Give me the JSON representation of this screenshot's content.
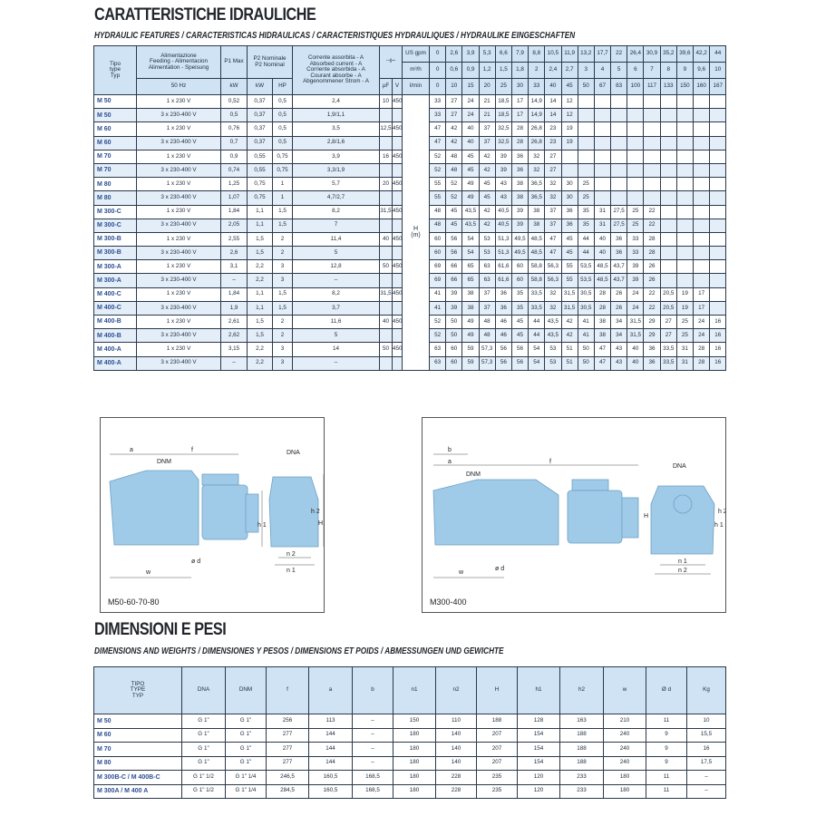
{
  "hydraulic": {
    "title": "CARATTERISTICHE IDRAULICHE",
    "subtitle": "HYDRAULIC FEATURES / CARACTERISTICAS HIDRAULICAS / CARACTERISTIQUES HYDRAULIQUES / HYDRAULIKE EINGESCHAFTEN",
    "headers": {
      "type": "Tipo\ntype\nTyp",
      "feeding": "Alimentazione\nFeeding - Alimentacion\nAlimentation - Speisung",
      "hz": "50 Hz",
      "p1": "P1 Max",
      "p2": "P2 Nominale\nP2 Nominal",
      "kw": "kW",
      "hp": "HP",
      "current": "Corrente assorbita - A\nAbsorbed current - A\nCorriente absorbida - A\nCourant absorbe - A\nAbgenommener Strom - A",
      "capacitor_symbol": "⊣⊢",
      "uf": "µF",
      "v": "V",
      "unit_labels": [
        "US gpm",
        "m³/h",
        "l/min"
      ],
      "head_unit": "H\n(m)"
    },
    "flow_us_gpm": [
      "0",
      "2,6",
      "3,9",
      "5,3",
      "6,6",
      "7,9",
      "8,8",
      "10,5",
      "11,9",
      "13,2",
      "17,7",
      "22",
      "26,4",
      "30,9",
      "35,2",
      "39,6",
      "42,2",
      "44"
    ],
    "flow_m3h": [
      "0",
      "0,6",
      "0,9",
      "1,2",
      "1,5",
      "1,8",
      "2",
      "2,4",
      "2,7",
      "3",
      "4",
      "5",
      "6",
      "7",
      "8",
      "9",
      "9,6",
      "10"
    ],
    "flow_lmin": [
      "0",
      "10",
      "15",
      "20",
      "25",
      "30",
      "33",
      "40",
      "45",
      "50",
      "67",
      "83",
      "100",
      "117",
      "133",
      "150",
      "160",
      "167"
    ],
    "rows": [
      {
        "type": "M 50",
        "feed": "1 x 230 V",
        "p1": "0,52",
        "kw": "0,37",
        "hp": "0,5",
        "amp": "2,4",
        "uf": "10",
        "v": "450",
        "h": [
          "33",
          "27",
          "24",
          "21",
          "18,5",
          "17",
          "14,9",
          "14",
          "12"
        ]
      },
      {
        "type": "M 50",
        "feed": "3 x 230-400 V",
        "p1": "0,5",
        "kw": "0,37",
        "hp": "0,5",
        "amp": "1,9/1,1",
        "uf": "",
        "v": "",
        "h": [
          "33",
          "27",
          "24",
          "21",
          "18,5",
          "17",
          "14,9",
          "14",
          "12"
        ]
      },
      {
        "type": "M 60",
        "feed": "1 x 230 V",
        "p1": "0,76",
        "kw": "0,37",
        "hp": "0,5",
        "amp": "3,5",
        "uf": "12,5",
        "v": "450",
        "h": [
          "47",
          "42",
          "40",
          "37",
          "32,5",
          "28",
          "26,8",
          "23",
          "19"
        ]
      },
      {
        "type": "M 60",
        "feed": "3 x 230-400 V",
        "p1": "0,7",
        "kw": "0,37",
        "hp": "0,5",
        "amp": "2,8/1,6",
        "uf": "",
        "v": "",
        "h": [
          "47",
          "42",
          "40",
          "37",
          "32,5",
          "28",
          "26,8",
          "23",
          "19"
        ]
      },
      {
        "type": "M 70",
        "feed": "1 x 230 V",
        "p1": "0,9",
        "kw": "0,55",
        "hp": "0,75",
        "amp": "3,9",
        "uf": "16",
        "v": "450",
        "h": [
          "52",
          "48",
          "45",
          "42",
          "39",
          "36",
          "32",
          "27"
        ]
      },
      {
        "type": "M 70",
        "feed": "3 x 230-400 V",
        "p1": "0,74",
        "kw": "0,55",
        "hp": "0,75",
        "amp": "3,3/1,9",
        "uf": "",
        "v": "",
        "h": [
          "52",
          "48",
          "45",
          "42",
          "39",
          "36",
          "32",
          "27"
        ]
      },
      {
        "type": "M 80",
        "feed": "1 x 230 V",
        "p1": "1,25",
        "kw": "0,75",
        "hp": "1",
        "amp": "5,7",
        "uf": "20",
        "v": "450",
        "h": [
          "55",
          "52",
          "49",
          "45",
          "43",
          "38",
          "36,5",
          "32",
          "30",
          "25"
        ]
      },
      {
        "type": "M 80",
        "feed": "3 x 230-400 V",
        "p1": "1,07",
        "kw": "0,75",
        "hp": "1",
        "amp": "4,7/2,7",
        "uf": "",
        "v": "",
        "h": [
          "55",
          "52",
          "49",
          "45",
          "43",
          "38",
          "36,5",
          "32",
          "30",
          "25"
        ]
      },
      {
        "type": "M 300-C",
        "feed": "1 x 230 V",
        "p1": "1,84",
        "kw": "1,1",
        "hp": "1,5",
        "amp": "8,2",
        "uf": "31,5",
        "v": "450",
        "h": [
          "48",
          "45",
          "43,5",
          "42",
          "40,5",
          "39",
          "38",
          "37",
          "36",
          "35",
          "31",
          "27,5",
          "25",
          "22"
        ]
      },
      {
        "type": "M 300-C",
        "feed": "3 x 230-400 V",
        "p1": "2,05",
        "kw": "1,1",
        "hp": "1,5",
        "amp": "7",
        "uf": "",
        "v": "",
        "h": [
          "48",
          "45",
          "43,5",
          "42",
          "40,5",
          "39",
          "38",
          "37",
          "36",
          "35",
          "31",
          "27,5",
          "25",
          "22"
        ]
      },
      {
        "type": "M 300-B",
        "feed": "1 x 230 V",
        "p1": "2,55",
        "kw": "1,5",
        "hp": "2",
        "amp": "11,4",
        "uf": "40",
        "v": "450",
        "h": [
          "60",
          "56",
          "54",
          "53",
          "51,3",
          "49,5",
          "48,5",
          "47",
          "45",
          "44",
          "40",
          "36",
          "33",
          "28"
        ]
      },
      {
        "type": "M 300-B",
        "feed": "3 x 230-400 V",
        "p1": "2,6",
        "kw": "1,5",
        "hp": "2",
        "amp": "5",
        "uf": "",
        "v": "",
        "h": [
          "60",
          "56",
          "54",
          "53",
          "51,3",
          "49,5",
          "48,5",
          "47",
          "45",
          "44",
          "40",
          "36",
          "33",
          "28"
        ]
      },
      {
        "type": "M 300-A",
        "feed": "1 x 230 V",
        "p1": "3,1",
        "kw": "2,2",
        "hp": "3",
        "amp": "12,8",
        "uf": "50",
        "v": "450",
        "h": [
          "69",
          "66",
          "65",
          "63",
          "61,6",
          "60",
          "58,8",
          "56,3",
          "55",
          "53,5",
          "48,5",
          "43,7",
          "39",
          "26"
        ]
      },
      {
        "type": "M 300-A",
        "feed": "3 x 230-400 V",
        "p1": "–",
        "kw": "2,2",
        "hp": "3",
        "amp": "–",
        "uf": "",
        "v": "",
        "h": [
          "69",
          "66",
          "65",
          "63",
          "61,6",
          "60",
          "58,8",
          "56,3",
          "55",
          "53,5",
          "48,5",
          "43,7",
          "39",
          "26"
        ]
      },
      {
        "type": "M 400-C",
        "feed": "1 x 230 V",
        "p1": "1,84",
        "kw": "1,1",
        "hp": "1,5",
        "amp": "8,2",
        "uf": "31,5",
        "v": "450",
        "h": [
          "41",
          "39",
          "38",
          "37",
          "36",
          "35",
          "33,5",
          "32",
          "31,5",
          "30,5",
          "28",
          "26",
          "24",
          "22",
          "20,5",
          "19",
          "17"
        ]
      },
      {
        "type": "M 400-C",
        "feed": "3 x 230-400 V",
        "p1": "1,9",
        "kw": "1,1",
        "hp": "1,5",
        "amp": "3,7",
        "uf": "",
        "v": "",
        "h": [
          "41",
          "39",
          "38",
          "37",
          "36",
          "35",
          "33,5",
          "32",
          "31,5",
          "30,5",
          "28",
          "26",
          "24",
          "22",
          "20,5",
          "19",
          "17"
        ]
      },
      {
        "type": "M 400-B",
        "feed": "1 x 230 V",
        "p1": "2,61",
        "kw": "1,5",
        "hp": "2",
        "amp": "11,6",
        "uf": "40",
        "v": "450",
        "h": [
          "52",
          "50",
          "49",
          "48",
          "46",
          "45",
          "44",
          "43,5",
          "42",
          "41",
          "38",
          "34",
          "31,5",
          "29",
          "27",
          "25",
          "24",
          "16"
        ]
      },
      {
        "type": "M 400-B",
        "feed": "3 x 230-400 V",
        "p1": "2,62",
        "kw": "1,5",
        "hp": "2",
        "amp": "5",
        "uf": "",
        "v": "",
        "h": [
          "52",
          "50",
          "49",
          "48",
          "46",
          "45",
          "44",
          "43,5",
          "42",
          "41",
          "38",
          "34",
          "31,5",
          "29",
          "27",
          "25",
          "24",
          "16"
        ]
      },
      {
        "type": "M 400-A",
        "feed": "1 x 230 V",
        "p1": "3,15",
        "kw": "2,2",
        "hp": "3",
        "amp": "14",
        "uf": "50",
        "v": "450",
        "h": [
          "63",
          "60",
          "59",
          "57,3",
          "56",
          "56",
          "54",
          "53",
          "51",
          "50",
          "47",
          "43",
          "40",
          "36",
          "33,5",
          "31",
          "28",
          "16"
        ]
      },
      {
        "type": "M 400-A",
        "feed": "3 x 230-400 V",
        "p1": "–",
        "kw": "2,2",
        "hp": "3",
        "amp": "–",
        "uf": "",
        "v": "",
        "h": [
          "63",
          "60",
          "59",
          "57,3",
          "56",
          "56",
          "54",
          "53",
          "51",
          "50",
          "47",
          "43",
          "40",
          "36",
          "33,5",
          "31",
          "28",
          "16"
        ]
      }
    ]
  },
  "diagrams": {
    "left": {
      "caption": "M50-60-70-80",
      "labels": {
        "a": "a",
        "f": "f",
        "dnm": "DNM",
        "dna": "DNA",
        "h1": "h 1",
        "h2": "h 2",
        "H": "H",
        "w": "w",
        "d": "ø d",
        "n2": "n 2",
        "n1": "n 1"
      }
    },
    "right": {
      "caption": "M300-400",
      "labels": {
        "b": "b",
        "a": "a",
        "f": "f",
        "dnm": "DNM",
        "dna": "DNA",
        "H": "H",
        "h1": "h 1",
        "h2": "h 2",
        "w": "w",
        "d": "ø d",
        "n1": "n 1",
        "n2": "n 2"
      }
    },
    "pump_color": "#9fcbe8"
  },
  "dimensions": {
    "title": "DIMENSIONI E PESI",
    "subtitle": "DIMENSIONS AND WEIGHTS / DIMENSIONES Y PESOS / DIMENSIONS ET POIDS / ABMESSUNGEN UND GEWICHTE",
    "headers": [
      "TIPO\nTYPE\nTYP",
      "DNA",
      "DNM",
      "f",
      "a",
      "b",
      "n1",
      "n2",
      "H",
      "h1",
      "h2",
      "w",
      "Ø d",
      "Kg"
    ],
    "rows": [
      [
        "M 50",
        "G 1\"",
        "G 1\"",
        "256",
        "113",
        "–",
        "150",
        "110",
        "188",
        "128",
        "163",
        "210",
        "11",
        "10"
      ],
      [
        "M 60",
        "G 1\"",
        "G 1\"",
        "277",
        "144",
        "–",
        "180",
        "140",
        "207",
        "154",
        "188",
        "240",
        "9",
        "15,5"
      ],
      [
        "M 70",
        "G 1\"",
        "G 1\"",
        "277",
        "144",
        "–",
        "180",
        "140",
        "207",
        "154",
        "188",
        "240",
        "9",
        "16"
      ],
      [
        "M 80",
        "G 1\"",
        "G 1\"",
        "277",
        "144",
        "–",
        "180",
        "140",
        "207",
        "154",
        "188",
        "240",
        "9",
        "17,5"
      ],
      [
        "M 300B-C / M 400B-C",
        "G 1\" 1/2",
        "G 1\" 1/4",
        "246,5",
        "160,5",
        "168,5",
        "180",
        "228",
        "235",
        "120",
        "233",
        "180",
        "11",
        "–"
      ],
      [
        "M 300A / M 400 A",
        "G 1\" 1/2",
        "G 1\" 1/4",
        "284,5",
        "160,5",
        "168,5",
        "180",
        "228",
        "235",
        "120",
        "233",
        "180",
        "11",
        "–"
      ]
    ]
  }
}
